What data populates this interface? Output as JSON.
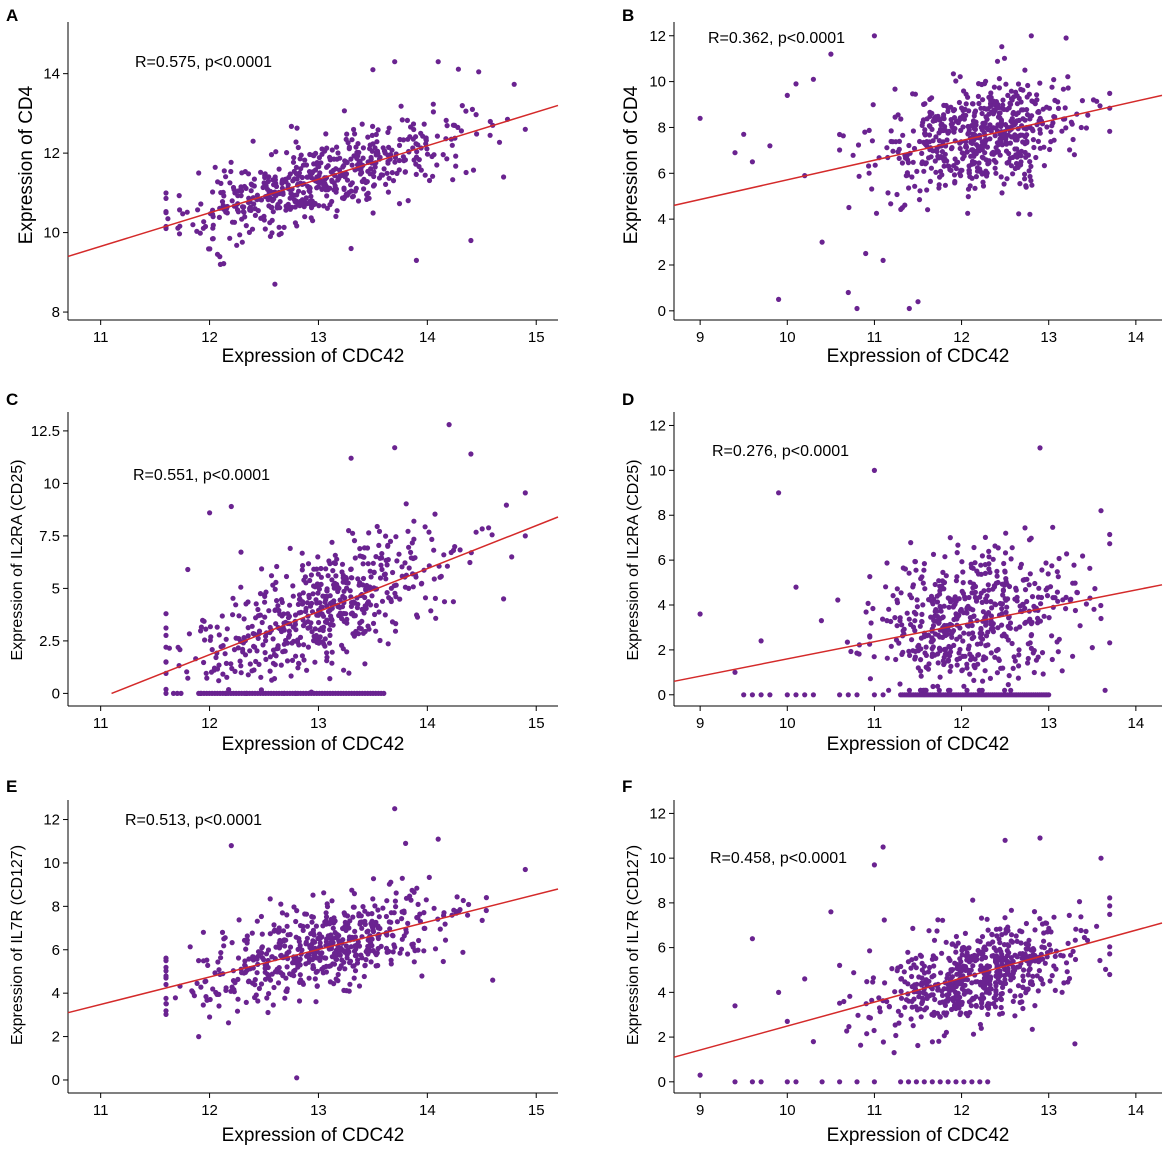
{
  "chart_data": [
    {
      "panel": "A",
      "type": "scatter",
      "xlabel": "Expression of CDC42",
      "ylabel": "Expression of CD4",
      "annotation": "R=0.575, p<0.0001",
      "xlim": [
        10.7,
        15.2
      ],
      "ylim": [
        7.8,
        15.3
      ],
      "xticks": [
        11,
        12,
        13,
        14,
        15
      ],
      "xtick_labels": [
        "11",
        "12",
        "13",
        "14",
        "15"
      ],
      "yticks": [
        8,
        10,
        12,
        14
      ],
      "ytick_labels": [
        "8",
        "10",
        "12",
        "14"
      ],
      "fit_line": {
        "x": [
          10.7,
          15.2
        ],
        "y": [
          9.4,
          13.2
        ]
      },
      "cloud": {
        "x_center": 13.0,
        "x_sd": 0.62,
        "x_min": 11.6,
        "x_max": 14.9,
        "y_noise": 0.65,
        "y_min": 8.7,
        "y_max": 14.3,
        "n": 560,
        "seed": 11
      },
      "points": [
        {
          "x": 12.6,
          "y": 8.7
        },
        {
          "x": 12.1,
          "y": 9.2
        },
        {
          "x": 13.7,
          "y": 14.3
        },
        {
          "x": 13.5,
          "y": 14.1
        },
        {
          "x": 14.1,
          "y": 14.3
        },
        {
          "x": 14.9,
          "y": 12.6
        },
        {
          "x": 14.7,
          "y": 11.4
        },
        {
          "x": 14.4,
          "y": 9.8
        },
        {
          "x": 13.9,
          "y": 9.3
        },
        {
          "x": 13.3,
          "y": 9.6
        },
        {
          "x": 11.6,
          "y": 10.5
        },
        {
          "x": 12.4,
          "y": 12.3
        },
        {
          "x": 11.9,
          "y": 11.5
        },
        {
          "x": 14.6,
          "y": 12.7
        }
      ]
    },
    {
      "panel": "B",
      "type": "scatter",
      "xlabel": "Expression of CDC42",
      "ylabel": "Expression of CD4",
      "annotation": "R=0.362, p<0.0001",
      "xlim": [
        8.7,
        14.3
      ],
      "ylim": [
        -0.4,
        12.6
      ],
      "xticks": [
        9,
        10,
        11,
        12,
        13,
        14
      ],
      "xtick_labels": [
        "9",
        "10",
        "11",
        "12",
        "13",
        "14"
      ],
      "yticks": [
        0,
        2,
        4,
        6,
        8,
        10,
        12
      ],
      "ytick_labels": [
        "0",
        "2",
        "4",
        "6",
        "8",
        "10",
        "12"
      ],
      "fit_line": {
        "x": [
          8.7,
          14.3
        ],
        "y": [
          4.6,
          9.4
        ]
      },
      "cloud": {
        "x_center": 12.2,
        "x_sd": 0.55,
        "x_min": 10.6,
        "x_max": 13.7,
        "y_noise": 1.5,
        "y_min": 0.3,
        "y_max": 12.0,
        "n": 600,
        "seed": 22
      },
      "points": [
        {
          "x": 9.0,
          "y": 8.4
        },
        {
          "x": 9.5,
          "y": 7.7
        },
        {
          "x": 9.8,
          "y": 7.2
        },
        {
          "x": 10.0,
          "y": 9.4
        },
        {
          "x": 10.1,
          "y": 9.9
        },
        {
          "x": 10.3,
          "y": 10.1
        },
        {
          "x": 10.2,
          "y": 5.9
        },
        {
          "x": 9.4,
          "y": 6.9
        },
        {
          "x": 9.6,
          "y": 6.5
        },
        {
          "x": 9.9,
          "y": 0.5
        },
        {
          "x": 10.4,
          "y": 3.0
        },
        {
          "x": 10.5,
          "y": 11.2
        },
        {
          "x": 11.0,
          "y": 12.0
        },
        {
          "x": 10.7,
          "y": 0.8
        },
        {
          "x": 10.8,
          "y": 0.1
        },
        {
          "x": 11.4,
          "y": 0.1
        },
        {
          "x": 11.5,
          "y": 0.4
        },
        {
          "x": 10.9,
          "y": 2.5
        },
        {
          "x": 11.1,
          "y": 2.2
        },
        {
          "x": 12.8,
          "y": 12.0
        },
        {
          "x": 13.2,
          "y": 11.9
        }
      ]
    },
    {
      "panel": "C",
      "type": "scatter",
      "xlabel": "Expression of CDC42",
      "ylabel": "Expression of IL2RA (CD25)",
      "annotation": "R=0.551, p<0.0001",
      "xlim": [
        10.7,
        15.2
      ],
      "ylim": [
        -0.6,
        13.4
      ],
      "xticks": [
        11,
        12,
        13,
        14,
        15
      ],
      "xtick_labels": [
        "11",
        "12",
        "13",
        "14",
        "15"
      ],
      "yticks": [
        0,
        2.5,
        5,
        7.5,
        10,
        12.5
      ],
      "ytick_labels": [
        "0",
        "2.5",
        "5",
        "7.5",
        "10",
        "12.5"
      ],
      "fit_line": {
        "x": [
          11.1,
          15.2
        ],
        "y": [
          0.0,
          8.4
        ]
      },
      "cloud": {
        "x_center": 13.0,
        "x_sd": 0.62,
        "x_min": 11.6,
        "x_max": 14.9,
        "y_noise": 1.8,
        "y_min": 0.0,
        "y_max": 12.8,
        "n": 560,
        "seed": 33
      },
      "zero_row": {
        "x_min": 11.9,
        "x_max": 13.6,
        "count": 70,
        "y": 0
      },
      "points": [
        {
          "x": 14.2,
          "y": 12.8
        },
        {
          "x": 13.7,
          "y": 11.7
        },
        {
          "x": 12.2,
          "y": 8.9
        },
        {
          "x": 12.0,
          "y": 8.6
        },
        {
          "x": 11.8,
          "y": 5.9
        },
        {
          "x": 11.6,
          "y": 2.2
        },
        {
          "x": 14.9,
          "y": 7.5
        },
        {
          "x": 14.7,
          "y": 4.5
        },
        {
          "x": 13.3,
          "y": 11.2
        },
        {
          "x": 14.4,
          "y": 11.4
        }
      ]
    },
    {
      "panel": "D",
      "type": "scatter",
      "xlabel": "Expression of CDC42",
      "ylabel": "Expression of IL2RA (CD25)",
      "annotation": "R=0.276, p<0.0001",
      "xlim": [
        8.7,
        14.3
      ],
      "ylim": [
        -0.5,
        12.6
      ],
      "xticks": [
        9,
        10,
        11,
        12,
        13,
        14
      ],
      "xtick_labels": [
        "9",
        "10",
        "11",
        "12",
        "13",
        "14"
      ],
      "yticks": [
        0,
        2,
        4,
        6,
        8,
        10,
        12
      ],
      "ytick_labels": [
        "0",
        "2",
        "4",
        "6",
        "8",
        "10",
        "12"
      ],
      "fit_line": {
        "x": [
          8.7,
          14.3
        ],
        "y": [
          0.6,
          4.9
        ]
      },
      "cloud": {
        "x_center": 12.1,
        "x_sd": 0.6,
        "x_min": 10.2,
        "x_max": 13.7,
        "y_noise": 2.0,
        "y_min": 0.2,
        "y_max": 11.0,
        "n": 560,
        "seed": 44
      },
      "zero_row": {
        "x_min": 11.3,
        "x_max": 13.0,
        "count": 80,
        "y": 0
      },
      "points": [
        {
          "x": 9.0,
          "y": 3.6
        },
        {
          "x": 9.4,
          "y": 1.0
        },
        {
          "x": 9.7,
          "y": 2.4
        },
        {
          "x": 9.9,
          "y": 9.0
        },
        {
          "x": 10.1,
          "y": 4.8
        },
        {
          "x": 12.9,
          "y": 11.0
        },
        {
          "x": 11.0,
          "y": 10.0
        },
        {
          "x": 9.5,
          "y": 0.0
        },
        {
          "x": 9.6,
          "y": 0.0
        },
        {
          "x": 9.7,
          "y": 0.0
        },
        {
          "x": 9.8,
          "y": 0.0
        },
        {
          "x": 10.0,
          "y": 0.0
        },
        {
          "x": 10.1,
          "y": 0.0
        },
        {
          "x": 10.2,
          "y": 0.0
        },
        {
          "x": 10.3,
          "y": 0.0
        },
        {
          "x": 10.6,
          "y": 0.0
        },
        {
          "x": 10.7,
          "y": 0.0
        },
        {
          "x": 10.8,
          "y": 0.0
        },
        {
          "x": 11.0,
          "y": 0.0
        },
        {
          "x": 11.1,
          "y": 0.0
        },
        {
          "x": 13.6,
          "y": 3.4
        },
        {
          "x": 13.5,
          "y": 2.1
        },
        {
          "x": 13.6,
          "y": 8.2
        }
      ]
    },
    {
      "panel": "E",
      "type": "scatter",
      "xlabel": "Expression of CDC42",
      "ylabel": "Expression of IL7R (CD127)",
      "annotation": "R=0.513, p<0.0001",
      "xlim": [
        10.7,
        15.2
      ],
      "ylim": [
        -0.6,
        12.9
      ],
      "xticks": [
        11,
        12,
        13,
        14,
        15
      ],
      "xtick_labels": [
        "11",
        "12",
        "13",
        "14",
        "15"
      ],
      "yticks": [
        0,
        2,
        4,
        6,
        8,
        10,
        12
      ],
      "ytick_labels": [
        "0",
        "2",
        "4",
        "6",
        "8",
        "10",
        "12"
      ],
      "fit_line": {
        "x": [
          10.7,
          15.2
        ],
        "y": [
          3.1,
          8.8
        ]
      },
      "cloud": {
        "x_center": 13.0,
        "x_sd": 0.62,
        "x_min": 11.6,
        "x_max": 14.9,
        "y_noise": 1.3,
        "y_min": 1.9,
        "y_max": 11.1,
        "n": 560,
        "seed": 55
      },
      "points": [
        {
          "x": 12.8,
          "y": 0.1
        },
        {
          "x": 13.7,
          "y": 12.5
        },
        {
          "x": 12.2,
          "y": 10.8
        },
        {
          "x": 11.6,
          "y": 5.5
        },
        {
          "x": 11.9,
          "y": 2.0
        },
        {
          "x": 14.9,
          "y": 9.7
        },
        {
          "x": 14.6,
          "y": 4.6
        },
        {
          "x": 14.1,
          "y": 11.1
        },
        {
          "x": 13.8,
          "y": 10.9
        },
        {
          "x": 12.0,
          "y": 2.9
        }
      ]
    },
    {
      "panel": "F",
      "type": "scatter",
      "xlabel": "Expression of CDC42",
      "ylabel": "Expression of IL7R (CD127)",
      "annotation": "R=0.458, p<0.0001",
      "xlim": [
        8.7,
        14.3
      ],
      "ylim": [
        -0.5,
        12.6
      ],
      "xticks": [
        9,
        10,
        11,
        12,
        13,
        14
      ],
      "xtick_labels": [
        "9",
        "10",
        "11",
        "12",
        "13",
        "14"
      ],
      "yticks": [
        0,
        2,
        4,
        6,
        8,
        10,
        12
      ],
      "ytick_labels": [
        "0",
        "2",
        "4",
        "6",
        "8",
        "10",
        "12"
      ],
      "fit_line": {
        "x": [
          8.7,
          14.3
        ],
        "y": [
          1.1,
          7.1
        ]
      },
      "cloud": {
        "x_center": 12.2,
        "x_sd": 0.55,
        "x_min": 10.6,
        "x_max": 13.7,
        "y_noise": 1.3,
        "y_min": 0.5,
        "y_max": 10.9,
        "n": 600,
        "seed": 66
      },
      "zero_row": {
        "x_min": 11.3,
        "x_max": 12.3,
        "count": 12,
        "y": 0
      },
      "points": [
        {
          "x": 9.0,
          "y": 0.3
        },
        {
          "x": 9.4,
          "y": 3.4
        },
        {
          "x": 9.6,
          "y": 6.4
        },
        {
          "x": 9.9,
          "y": 4.0
        },
        {
          "x": 10.0,
          "y": 2.7
        },
        {
          "x": 10.2,
          "y": 4.6
        },
        {
          "x": 10.5,
          "y": 7.6
        },
        {
          "x": 11.1,
          "y": 10.5
        },
        {
          "x": 11.0,
          "y": 9.7
        },
        {
          "x": 12.5,
          "y": 10.8
        },
        {
          "x": 12.9,
          "y": 10.9
        },
        {
          "x": 13.6,
          "y": 10.0
        },
        {
          "x": 13.7,
          "y": 4.8
        },
        {
          "x": 9.4,
          "y": 0.0
        },
        {
          "x": 9.6,
          "y": 0.0
        },
        {
          "x": 9.7,
          "y": 0.0
        },
        {
          "x": 10.0,
          "y": 0.0
        },
        {
          "x": 10.1,
          "y": 0.0
        },
        {
          "x": 10.4,
          "y": 0.0
        },
        {
          "x": 10.6,
          "y": 0.0
        },
        {
          "x": 10.8,
          "y": 0.0
        },
        {
          "x": 11.0,
          "y": 0.0
        },
        {
          "x": 13.3,
          "y": 1.7
        },
        {
          "x": 10.3,
          "y": 1.8
        }
      ]
    }
  ]
}
